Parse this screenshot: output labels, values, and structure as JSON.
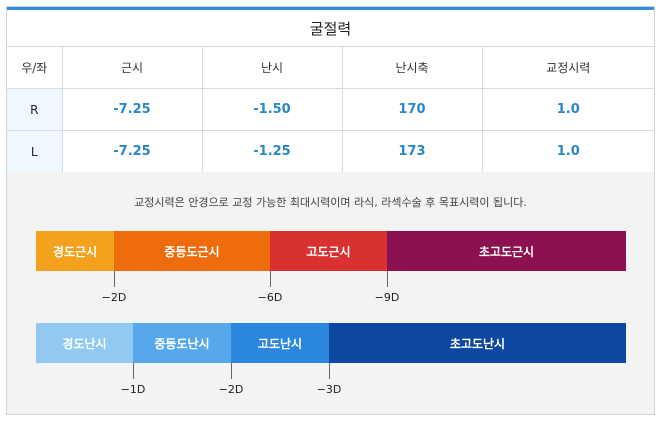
{
  "title": "굴절력",
  "table": {
    "headers": [
      "우/좌",
      "근시",
      "난시",
      "난시축",
      "교정시력"
    ],
    "rows": [
      {
        "eye": "R",
        "myopia": "-7.25",
        "astig": "-1.50",
        "axis": "170",
        "corrected": "1.0"
      },
      {
        "eye": "L",
        "myopia": "-7.25",
        "astig": "-1.25",
        "axis": "173",
        "corrected": "1.0"
      }
    ]
  },
  "note": "교정시력은 안경으로 교정 가능한 최대시력이며 라식, 라섹수술 후 목표시력이 됩니다.",
  "myopia_scale": {
    "segments": [
      {
        "label": "경도근시",
        "color": "#f4a11d"
      },
      {
        "label": "중등도근시",
        "color": "#ee6c0b"
      },
      {
        "label": "고도근시",
        "color": "#d8312f"
      },
      {
        "label": "초고도근시",
        "color": "#8b1151"
      }
    ],
    "ticks": [
      "−2D",
      "−6D",
      "−9D"
    ]
  },
  "astig_scale": {
    "segments": [
      {
        "label": "경도난시",
        "color": "#91c9f2"
      },
      {
        "label": "중등도난시",
        "color": "#57a8ea"
      },
      {
        "label": "고도난시",
        "color": "#2b86dd"
      },
      {
        "label": "초고도난시",
        "color": "#0d47a1"
      }
    ],
    "ticks": [
      "−1D",
      "−2D",
      "−3D"
    ]
  }
}
